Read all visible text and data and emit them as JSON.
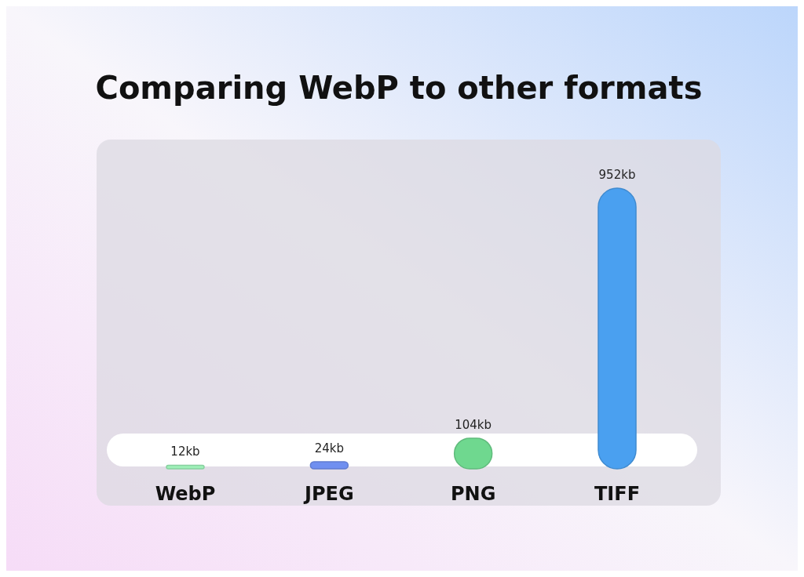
{
  "chart_data": {
    "type": "bar",
    "title": "Comparing WebP to other formats",
    "categories": [
      "WebP",
      "JPEG",
      "PNG",
      "TIFF"
    ],
    "values": [
      12,
      24,
      104,
      952
    ],
    "colors": [
      "#9ef0b8",
      "#6f8ff0",
      "#6fd88f",
      "#4aa0f0"
    ],
    "value_labels": [
      "12kb",
      "24kb",
      "104kb",
      "952kb"
    ]
  }
}
